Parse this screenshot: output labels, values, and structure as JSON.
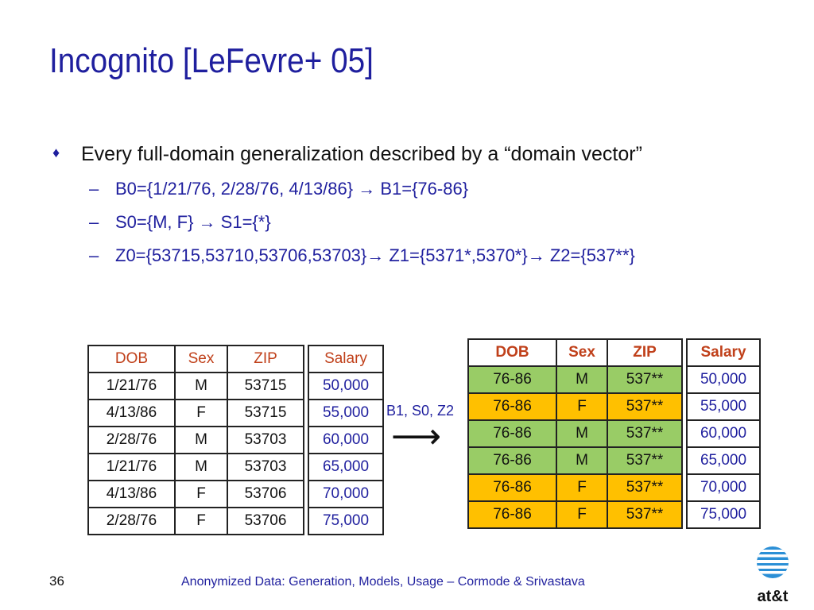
{
  "slide": {
    "title": "Incognito [LeFevre+ 05]",
    "bullet": "Every full-domain generalization described by a “domain vector”",
    "sub_bullets": [
      "B0={1/21/76, 2/28/76, 4/13/86} → B1={76-86}",
      "S0={M, F}  →  S1={*}",
      "Z0={53715,53710,53706,53703}→ Z1={5371*,5370*}→ Z2={537**}"
    ],
    "generalization_label": "B1, S0, Z2",
    "arrow_glyph": "⟶",
    "page_number": "36",
    "footer": "Anonymized Data: Generation, Models, Usage – Cormode & Srivastava",
    "logo_text": "at&t"
  },
  "colors": {
    "title": "#1f1f9e",
    "header_text": "#c0401a",
    "salary_text": "#1f1f9e",
    "green_row": "#99cc66",
    "orange_row": "#ffc000"
  },
  "table_left": {
    "headers": [
      "DOB",
      "Sex",
      "ZIP",
      "Salary"
    ],
    "rows": [
      [
        "1/21/76",
        "M",
        "53715",
        "50,000"
      ],
      [
        "4/13/86",
        "F",
        "53715",
        "55,000"
      ],
      [
        "2/28/76",
        "M",
        "53703",
        "60,000"
      ],
      [
        "1/21/76",
        "M",
        "53703",
        "65,000"
      ],
      [
        "4/13/86",
        "F",
        "53706",
        "70,000"
      ],
      [
        "2/28/76",
        "F",
        "53706",
        "75,000"
      ]
    ]
  },
  "table_right": {
    "headers": [
      "DOB",
      "Sex",
      "ZIP",
      "Salary"
    ],
    "rows": [
      [
        "76-86",
        "M",
        "537**",
        "50,000"
      ],
      [
        "76-86",
        "F",
        "537**",
        "55,000"
      ],
      [
        "76-86",
        "M",
        "537**",
        "60,000"
      ],
      [
        "76-86",
        "M",
        "537**",
        "65,000"
      ],
      [
        "76-86",
        "F",
        "537**",
        "70,000"
      ],
      [
        "76-86",
        "F",
        "537**",
        "75,000"
      ]
    ]
  }
}
